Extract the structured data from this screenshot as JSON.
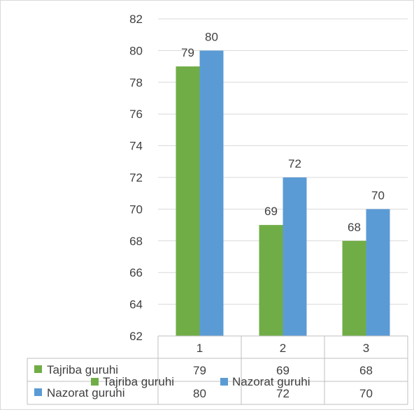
{
  "chart_data": {
    "type": "bar",
    "categories": [
      "1",
      "2",
      "3"
    ],
    "series": [
      {
        "name": "Tajriba guruhi",
        "values": [
          79,
          69,
          68
        ],
        "color": "#70ad47"
      },
      {
        "name": "Nazorat guruhi",
        "values": [
          80,
          72,
          70
        ],
        "color": "#5b9bd5"
      }
    ],
    "ylim": [
      62,
      82
    ],
    "yticks": [
      "62",
      "64",
      "66",
      "68",
      "70",
      "72",
      "74",
      "76",
      "78",
      "80",
      "82"
    ],
    "grid": true,
    "data_table": true,
    "legend_position": "bottom",
    "title": "",
    "xlabel": "",
    "ylabel": ""
  }
}
